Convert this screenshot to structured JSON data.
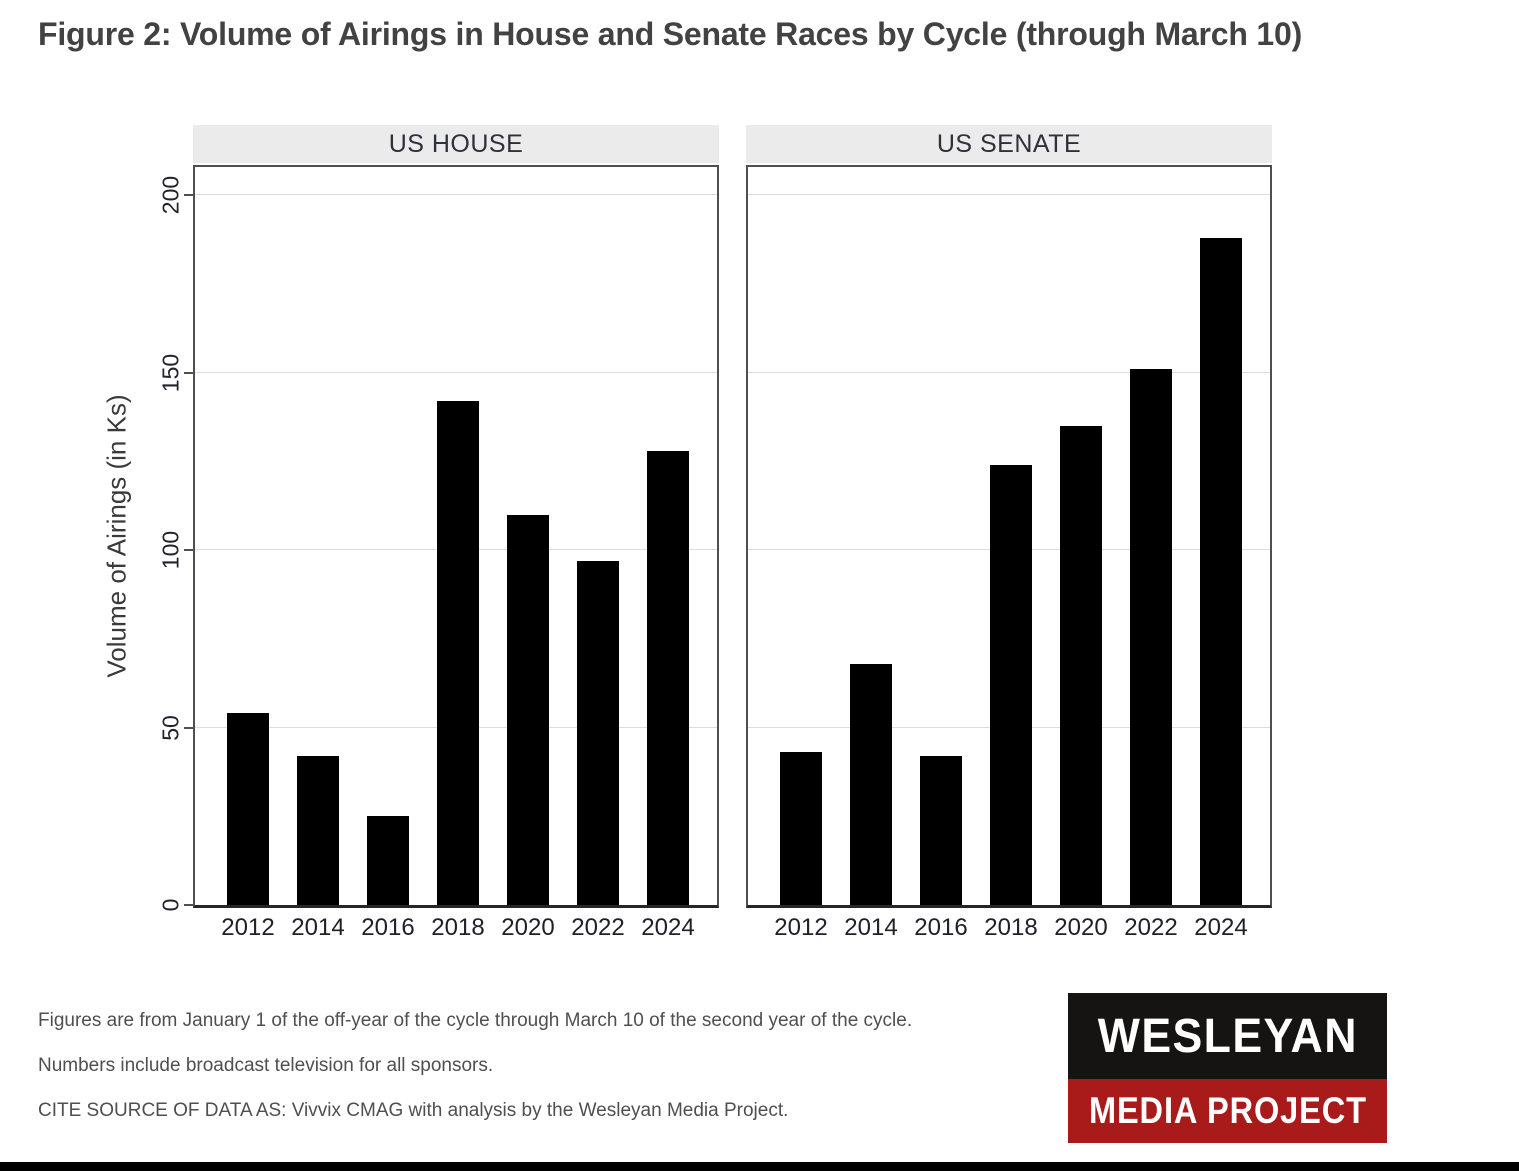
{
  "chart_data": {
    "type": "bar",
    "layout": "faceted-two-panel",
    "title": "Figure 2: Volume of Airings in House and Senate Races by Cycle (through March 10)",
    "categories": [
      "2012",
      "2014",
      "2016",
      "2018",
      "2020",
      "2022",
      "2024"
    ],
    "series": [
      {
        "name": "US HOUSE",
        "values": [
          54,
          42,
          25,
          142,
          110,
          97,
          128
        ]
      },
      {
        "name": "US SENATE",
        "values": [
          43,
          68,
          42,
          124,
          135,
          151,
          188
        ]
      }
    ],
    "xlabel": "",
    "ylabel": "Volume of Airings (in Ks)",
    "yticks": [
      0,
      50,
      100,
      150,
      200
    ],
    "ylim": [
      0,
      208
    ],
    "grid": true,
    "legend": "none",
    "bar_color": "#000000"
  },
  "footnotes": {
    "lines": [
      "Figures are from January 1 of the off-year of the cycle through March 10 of the second year of the cycle.",
      "Numbers include broadcast television for all sponsors.",
      "CITE SOURCE OF DATA AS: Vivvix CMAG with analysis by the Wesleyan Media Project."
    ]
  },
  "logo": {
    "line1": "WESLEYAN",
    "line2": "MEDIA PROJECT",
    "colors": {
      "top_bg": "#161413",
      "bottom_bg": "#a91a1a",
      "text": "#ffffff"
    }
  },
  "colors": {
    "panel_header_bg": "#ebebeb",
    "plot_border": "#4f4f4f",
    "gridline": "#dcdcdc",
    "bar": "#000000",
    "title_text": "#424242",
    "footnote_text": "#4f4f4f",
    "bottom_bar": "#000000"
  }
}
